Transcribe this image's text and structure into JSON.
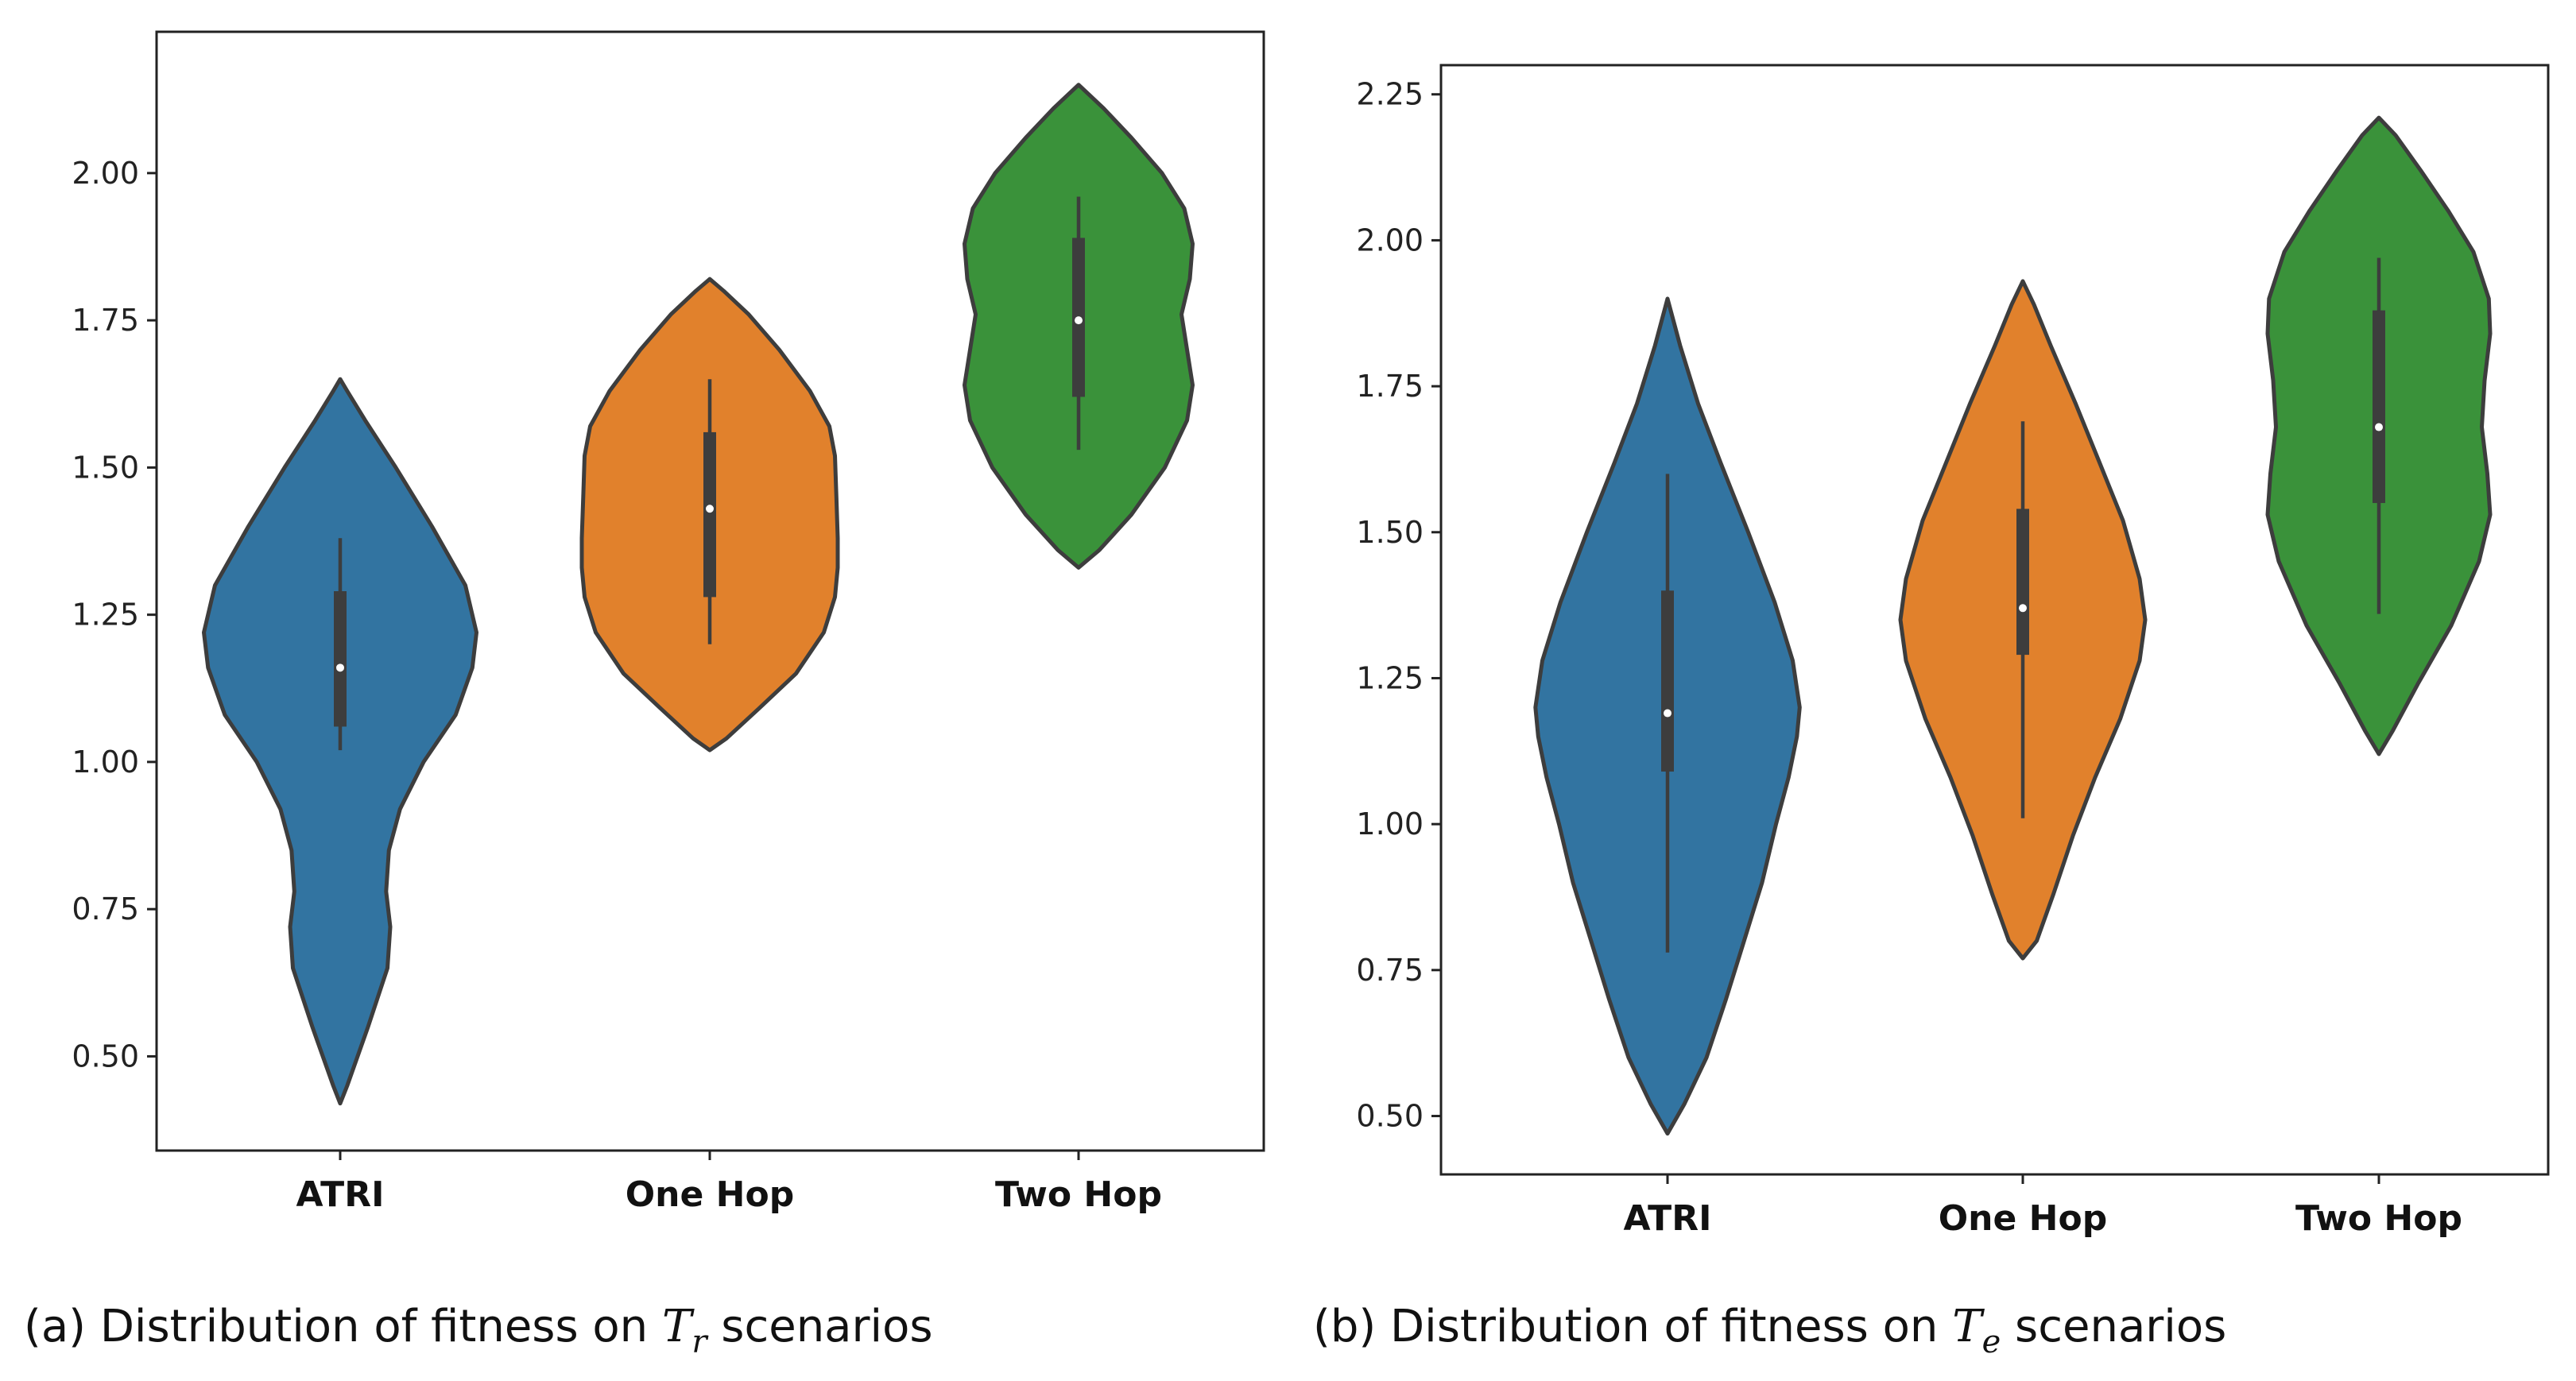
{
  "chart_data": [
    {
      "type": "violin",
      "title": "",
      "xlabel": "",
      "ylabel": "",
      "ylim": [
        0.34,
        2.24
      ],
      "yticks": [
        0.5,
        0.75,
        1.0,
        1.25,
        1.5,
        1.75,
        2.0
      ],
      "ytick_labels": [
        "0.50",
        "0.75",
        "1.00",
        "1.25",
        "1.50",
        "1.75",
        "2.00"
      ],
      "categories": [
        "ATRI",
        "One Hop",
        "Two Hop"
      ],
      "colors": [
        "#3274a1",
        "#e1812c",
        "#3a923a"
      ],
      "series": [
        {
          "name": "ATRI",
          "min": 0.42,
          "max": 1.65,
          "whisker_low": 1.02,
          "whisker_high": 1.38,
          "q1": 1.06,
          "median": 1.16,
          "q3": 1.29,
          "density": [
            [
              0.42,
              0.0
            ],
            [
              0.45,
              0.05
            ],
            [
              0.55,
              0.2
            ],
            [
              0.65,
              0.34
            ],
            [
              0.72,
              0.36
            ],
            [
              0.78,
              0.33
            ],
            [
              0.85,
              0.35
            ],
            [
              0.92,
              0.43
            ],
            [
              1.0,
              0.6
            ],
            [
              1.08,
              0.83
            ],
            [
              1.16,
              0.95
            ],
            [
              1.22,
              0.98
            ],
            [
              1.3,
              0.9
            ],
            [
              1.4,
              0.66
            ],
            [
              1.5,
              0.4
            ],
            [
              1.58,
              0.18
            ],
            [
              1.63,
              0.05
            ],
            [
              1.65,
              0.0
            ]
          ]
        },
        {
          "name": "One Hop",
          "min": 1.02,
          "max": 1.82,
          "whisker_low": 1.2,
          "whisker_high": 1.65,
          "q1": 1.28,
          "median": 1.43,
          "q3": 1.56,
          "density": [
            [
              1.02,
              0.0
            ],
            [
              1.04,
              0.12
            ],
            [
              1.09,
              0.35
            ],
            [
              1.15,
              0.62
            ],
            [
              1.22,
              0.82
            ],
            [
              1.28,
              0.9
            ],
            [
              1.33,
              0.92
            ],
            [
              1.38,
              0.92
            ],
            [
              1.45,
              0.91
            ],
            [
              1.52,
              0.9
            ],
            [
              1.57,
              0.86
            ],
            [
              1.63,
              0.72
            ],
            [
              1.7,
              0.5
            ],
            [
              1.76,
              0.28
            ],
            [
              1.8,
              0.1
            ],
            [
              1.82,
              0.0
            ]
          ]
        },
        {
          "name": "Two Hop",
          "min": 1.33,
          "max": 2.15,
          "whisker_low": 1.53,
          "whisker_high": 1.96,
          "q1": 1.62,
          "median": 1.75,
          "q3": 1.89,
          "density": [
            [
              1.33,
              0.0
            ],
            [
              1.36,
              0.15
            ],
            [
              1.42,
              0.38
            ],
            [
              1.5,
              0.62
            ],
            [
              1.58,
              0.78
            ],
            [
              1.64,
              0.82
            ],
            [
              1.7,
              0.78
            ],
            [
              1.76,
              0.74
            ],
            [
              1.82,
              0.8
            ],
            [
              1.88,
              0.82
            ],
            [
              1.94,
              0.76
            ],
            [
              2.0,
              0.6
            ],
            [
              2.06,
              0.38
            ],
            [
              2.11,
              0.18
            ],
            [
              2.15,
              0.0
            ]
          ]
        }
      ]
    },
    {
      "type": "violin",
      "title": "",
      "xlabel": "",
      "ylabel": "",
      "ylim": [
        0.4,
        2.3
      ],
      "yticks": [
        0.5,
        0.75,
        1.0,
        1.25,
        1.5,
        1.75,
        2.0,
        2.25
      ],
      "ytick_labels": [
        "0.50",
        "0.75",
        "1.00",
        "1.25",
        "1.50",
        "1.75",
        "2.00",
        "2.25"
      ],
      "categories": [
        "ATRI",
        "One Hop",
        "Two Hop"
      ],
      "colors": [
        "#3274a1",
        "#e1812c",
        "#3a923a"
      ],
      "series": [
        {
          "name": "ATRI",
          "min": 0.47,
          "max": 1.9,
          "whisker_low": 0.78,
          "whisker_high": 1.6,
          "q1": 1.09,
          "median": 1.19,
          "q3": 1.4,
          "density": [
            [
              0.47,
              0.0
            ],
            [
              0.52,
              0.12
            ],
            [
              0.6,
              0.28
            ],
            [
              0.7,
              0.42
            ],
            [
              0.8,
              0.55
            ],
            [
              0.9,
              0.68
            ],
            [
              1.0,
              0.78
            ],
            [
              1.08,
              0.87
            ],
            [
              1.15,
              0.93
            ],
            [
              1.2,
              0.95
            ],
            [
              1.28,
              0.9
            ],
            [
              1.38,
              0.77
            ],
            [
              1.5,
              0.58
            ],
            [
              1.62,
              0.38
            ],
            [
              1.72,
              0.22
            ],
            [
              1.82,
              0.09
            ],
            [
              1.9,
              0.0
            ]
          ]
        },
        {
          "name": "One Hop",
          "min": 0.77,
          "max": 1.93,
          "whisker_low": 1.01,
          "whisker_high": 1.69,
          "q1": 1.29,
          "median": 1.37,
          "q3": 1.54,
          "density": [
            [
              0.77,
              0.0
            ],
            [
              0.8,
              0.1
            ],
            [
              0.88,
              0.22
            ],
            [
              0.98,
              0.36
            ],
            [
              1.08,
              0.52
            ],
            [
              1.18,
              0.7
            ],
            [
              1.28,
              0.84
            ],
            [
              1.35,
              0.88
            ],
            [
              1.42,
              0.84
            ],
            [
              1.52,
              0.72
            ],
            [
              1.62,
              0.55
            ],
            [
              1.72,
              0.38
            ],
            [
              1.82,
              0.2
            ],
            [
              1.89,
              0.08
            ],
            [
              1.93,
              0.0
            ]
          ]
        },
        {
          "name": "Two Hop",
          "min": 1.12,
          "max": 2.21,
          "whisker_low": 1.36,
          "whisker_high": 1.97,
          "q1": 1.55,
          "median": 1.68,
          "q3": 1.88,
          "density": [
            [
              1.12,
              0.0
            ],
            [
              1.16,
              0.1
            ],
            [
              1.24,
              0.28
            ],
            [
              1.34,
              0.52
            ],
            [
              1.45,
              0.72
            ],
            [
              1.53,
              0.8
            ],
            [
              1.6,
              0.78
            ],
            [
              1.68,
              0.74
            ],
            [
              1.76,
              0.76
            ],
            [
              1.84,
              0.8
            ],
            [
              1.9,
              0.79
            ],
            [
              1.98,
              0.68
            ],
            [
              2.05,
              0.5
            ],
            [
              2.12,
              0.3
            ],
            [
              2.18,
              0.12
            ],
            [
              2.21,
              0.0
            ]
          ]
        }
      ]
    }
  ],
  "captions": {
    "a": {
      "prefix": "(a) Distribution of fitness on ",
      "symbol": "T",
      "subscript": "r",
      "suffix": " scenarios"
    },
    "b": {
      "prefix": "(b) Distribution of fitness on ",
      "symbol": "T",
      "subscript": "e",
      "suffix": " scenarios"
    }
  }
}
